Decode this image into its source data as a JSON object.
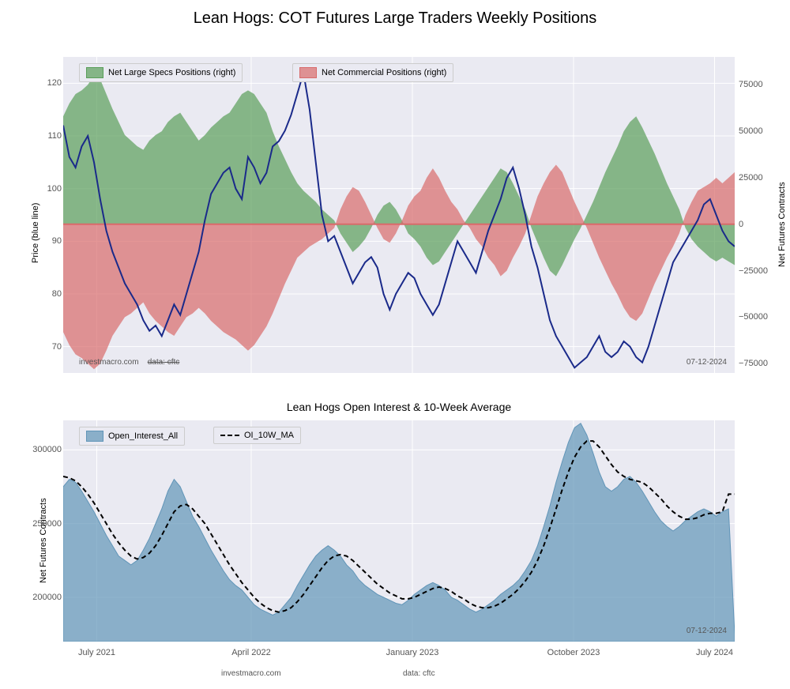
{
  "title": "Lean Hogs: COT Futures Large Traders Weekly Positions",
  "date_annotation": "07-12-2024",
  "attribution": "investmacro.com",
  "attribution_sub": "data: cftc",
  "top_chart": {
    "type": "dual-axis-area-line",
    "background_color": "#eaeaf2",
    "grid_color": "#ffffff",
    "left_axis": {
      "label": "Price (blue line)",
      "min": 65,
      "max": 125,
      "ticks": [
        70,
        80,
        90,
        100,
        110,
        120
      ],
      "label_fontsize": 11
    },
    "right_axis": {
      "label": "Net Futures Contracts",
      "min": -80000,
      "max": 90000,
      "ticks": [
        -75000,
        -50000,
        -25000,
        0,
        25000,
        50000,
        75000
      ],
      "label_fontsize": 11
    },
    "x_axis": {
      "labels": [
        "July 2021",
        "April 2022",
        "January 2023",
        "October 2023",
        "July 2024"
      ],
      "positions": [
        0.05,
        0.28,
        0.52,
        0.76,
        0.97
      ]
    },
    "legend": [
      {
        "label": "Net Large Specs Positions (right)",
        "color": "#5a9e5a",
        "fill_color": "rgba(90,158,90,0.7)"
      },
      {
        "label": "Net Commercial Positions (right)",
        "color": "#d86b6b",
        "fill_color": "rgba(216,107,107,0.7)"
      }
    ],
    "price_line": {
      "color": "#1a2a8a",
      "stroke_width": 2,
      "data": [
        112,
        106,
        104,
        108,
        110,
        105,
        98,
        92,
        88,
        85,
        82,
        80,
        78,
        75,
        73,
        74,
        72,
        75,
        78,
        76,
        80,
        84,
        88,
        94,
        99,
        101,
        103,
        104,
        100,
        98,
        106,
        104,
        101,
        103,
        108,
        109,
        111,
        114,
        118,
        122,
        115,
        105,
        95,
        90,
        91,
        88,
        85,
        82,
        84,
        86,
        87,
        85,
        80,
        77,
        80,
        82,
        84,
        83,
        80,
        78,
        76,
        78,
        82,
        86,
        90,
        88,
        86,
        84,
        88,
        92,
        95,
        98,
        102,
        104,
        100,
        95,
        89,
        85,
        80,
        75,
        72,
        70,
        68,
        66,
        67,
        68,
        70,
        72,
        69,
        68,
        69,
        71,
        70,
        68,
        67,
        70,
        74,
        78,
        82,
        86,
        88,
        90,
        92,
        94,
        97,
        98,
        95,
        92,
        90,
        89
      ]
    },
    "green_area": {
      "color": "rgba(90,158,90,0.7)",
      "data": [
        58000,
        65000,
        70000,
        72000,
        75000,
        80000,
        78000,
        70000,
        62000,
        55000,
        48000,
        45000,
        42000,
        40000,
        45000,
        48000,
        50000,
        55000,
        58000,
        60000,
        55000,
        50000,
        45000,
        48000,
        52000,
        55000,
        58000,
        60000,
        65000,
        70000,
        72000,
        70000,
        65000,
        60000,
        50000,
        42000,
        35000,
        28000,
        22000,
        18000,
        15000,
        12000,
        8000,
        5000,
        2000,
        -5000,
        -10000,
        -15000,
        -12000,
        -8000,
        -2000,
        5000,
        10000,
        12000,
        8000,
        2000,
        -5000,
        -8000,
        -12000,
        -18000,
        -22000,
        -20000,
        -15000,
        -10000,
        -5000,
        0,
        5000,
        10000,
        15000,
        20000,
        25000,
        30000,
        28000,
        22000,
        15000,
        8000,
        -2000,
        -10000,
        -18000,
        -25000,
        -28000,
        -22000,
        -15000,
        -8000,
        -2000,
        5000,
        12000,
        20000,
        28000,
        35000,
        42000,
        50000,
        55000,
        58000,
        52000,
        45000,
        38000,
        30000,
        22000,
        15000,
        8000,
        -2000,
        -8000,
        -12000,
        -15000,
        -18000,
        -20000,
        -18000,
        -20000,
        -22000
      ]
    },
    "red_area": {
      "color": "rgba(216,107,107,0.7)",
      "data": [
        -58000,
        -65000,
        -70000,
        -72000,
        -75000,
        -78000,
        -75000,
        -68000,
        -60000,
        -55000,
        -50000,
        -48000,
        -45000,
        -42000,
        -48000,
        -52000,
        -55000,
        -58000,
        -60000,
        -55000,
        -50000,
        -48000,
        -45000,
        -48000,
        -52000,
        -55000,
        -58000,
        -60000,
        -62000,
        -65000,
        -68000,
        -65000,
        -60000,
        -55000,
        -48000,
        -40000,
        -32000,
        -25000,
        -18000,
        -15000,
        -12000,
        -10000,
        -8000,
        -5000,
        -2000,
        8000,
        15000,
        20000,
        18000,
        12000,
        5000,
        -2000,
        -8000,
        -10000,
        -5000,
        2000,
        10000,
        15000,
        18000,
        25000,
        30000,
        25000,
        18000,
        12000,
        8000,
        2000,
        -2000,
        -8000,
        -12000,
        -18000,
        -22000,
        -28000,
        -25000,
        -18000,
        -12000,
        -5000,
        5000,
        15000,
        22000,
        28000,
        32000,
        28000,
        20000,
        12000,
        5000,
        -2000,
        -10000,
        -18000,
        -25000,
        -32000,
        -38000,
        -45000,
        -50000,
        -52000,
        -48000,
        -40000,
        -32000,
        -25000,
        -18000,
        -12000,
        -5000,
        5000,
        12000,
        18000,
        20000,
        22000,
        25000,
        22000,
        25000,
        28000
      ]
    },
    "zero_line_color": "#d86b6b"
  },
  "bottom_chart": {
    "title": "Lean Hogs Open Interest & 10-Week Average",
    "type": "area-line",
    "background_color": "#eaeaf2",
    "grid_color": "#ffffff",
    "y_axis": {
      "label": "Net Futures Contracts",
      "min": 170000,
      "max": 320000,
      "ticks": [
        200000,
        250000,
        300000
      ],
      "label_fontsize": 11
    },
    "x_axis": {
      "labels": [
        "July 2021",
        "April 2022",
        "January 2023",
        "October 2023",
        "July 2024"
      ],
      "positions": [
        0.05,
        0.28,
        0.52,
        0.76,
        0.97
      ]
    },
    "legend": [
      {
        "label": "Open_Interest_All",
        "color": "#6195b8",
        "fill_color": "rgba(97,149,184,0.7)"
      },
      {
        "label": "OI_10W_MA",
        "color": "#000000",
        "line_style": "dashed"
      }
    ],
    "area_data": {
      "color": "rgba(97,149,184,0.7)",
      "data": [
        275000,
        280000,
        278000,
        272000,
        265000,
        258000,
        250000,
        242000,
        235000,
        228000,
        225000,
        222000,
        225000,
        232000,
        240000,
        250000,
        260000,
        272000,
        280000,
        275000,
        265000,
        255000,
        248000,
        240000,
        232000,
        225000,
        218000,
        212000,
        208000,
        205000,
        200000,
        195000,
        192000,
        190000,
        188000,
        190000,
        195000,
        200000,
        208000,
        215000,
        222000,
        228000,
        232000,
        235000,
        232000,
        228000,
        222000,
        218000,
        212000,
        208000,
        205000,
        202000,
        200000,
        198000,
        196000,
        195000,
        198000,
        202000,
        205000,
        208000,
        210000,
        208000,
        205000,
        200000,
        198000,
        195000,
        192000,
        190000,
        192000,
        195000,
        198000,
        202000,
        205000,
        208000,
        212000,
        218000,
        225000,
        235000,
        248000,
        262000,
        278000,
        292000,
        305000,
        315000,
        318000,
        310000,
        298000,
        285000,
        275000,
        272000,
        275000,
        280000,
        282000,
        278000,
        272000,
        265000,
        258000,
        252000,
        248000,
        245000,
        248000,
        252000,
        255000,
        258000,
        260000,
        258000,
        255000,
        258000,
        260000,
        175000
      ]
    },
    "ma_line": {
      "color": "#000000",
      "stroke_width": 2,
      "dash": "6,4",
      "data": [
        282000,
        281000,
        279000,
        275000,
        270000,
        264000,
        257000,
        250000,
        243000,
        237000,
        232000,
        228000,
        226000,
        227000,
        230000,
        235000,
        242000,
        250000,
        258000,
        262000,
        263000,
        260000,
        255000,
        250000,
        243000,
        236000,
        229000,
        222000,
        216000,
        210000,
        205000,
        200000,
        196000,
        193000,
        191000,
        190000,
        191000,
        193000,
        197000,
        202000,
        208000,
        214000,
        220000,
        225000,
        228000,
        229000,
        228000,
        225000,
        221000,
        217000,
        213000,
        209000,
        206000,
        203000,
        201000,
        199000,
        199000,
        200000,
        202000,
        204000,
        206000,
        207000,
        206000,
        204000,
        201000,
        199000,
        196000,
        194000,
        193000,
        193000,
        194000,
        196000,
        199000,
        202000,
        206000,
        211000,
        217000,
        225000,
        235000,
        247000,
        260000,
        273000,
        285000,
        295000,
        302000,
        306000,
        306000,
        302000,
        296000,
        290000,
        285000,
        282000,
        280000,
        279000,
        278000,
        275000,
        271000,
        267000,
        262000,
        258000,
        255000,
        253000,
        253000,
        254000,
        256000,
        257000,
        257000,
        258000,
        270000,
        270000
      ]
    }
  }
}
